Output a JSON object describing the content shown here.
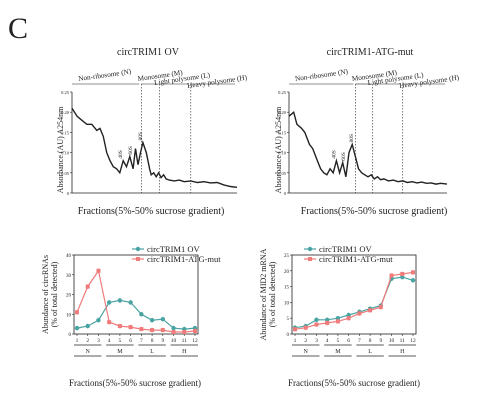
{
  "panel_label": "C",
  "colors": {
    "teal": "#4aa3a3",
    "pink": "#f07b7b",
    "ink": "#222222"
  },
  "chart_data": [
    {
      "type": "line",
      "title": "circTRIM1  OV",
      "ylabel": "Absorbance (AU) A254nm",
      "xlabel": "Fractions(5%-50% sucrose gradient)",
      "ylim": [
        0,
        0.25
      ],
      "yticks": [
        "0",
        "0.05",
        "0.10",
        "0.15",
        "0.20",
        "0.25"
      ],
      "regions": [
        "Non-ribosome (N)",
        "Monosome (M)",
        "Light polysome (L)",
        "Heavy polysome (H)"
      ],
      "peaks": [
        "40S",
        "60S",
        "80S"
      ],
      "x": [
        0,
        0.03,
        0.06,
        0.09,
        0.12,
        0.15,
        0.17,
        0.19,
        0.21,
        0.23,
        0.25,
        0.27,
        0.29,
        0.31,
        0.33,
        0.35,
        0.37,
        0.385,
        0.4,
        0.415,
        0.43,
        0.45,
        0.47,
        0.48,
        0.495,
        0.51,
        0.525,
        0.54,
        0.555,
        0.57,
        0.59,
        0.62,
        0.65,
        0.68,
        0.72,
        0.76,
        0.8,
        0.84,
        0.88,
        0.92,
        0.96,
        1.0
      ],
      "values": [
        0.21,
        0.19,
        0.18,
        0.17,
        0.17,
        0.155,
        0.16,
        0.14,
        0.1,
        0.08,
        0.065,
        0.06,
        0.05,
        0.08,
        0.065,
        0.09,
        0.06,
        0.11,
        0.07,
        0.1,
        0.125,
        0.1,
        0.06,
        0.045,
        0.05,
        0.04,
        0.05,
        0.038,
        0.045,
        0.035,
        0.032,
        0.03,
        0.032,
        0.028,
        0.03,
        0.026,
        0.028,
        0.025,
        0.026,
        0.02,
        0.016,
        0.014
      ]
    },
    {
      "type": "line",
      "title": "circTRIM1-ATG-mut",
      "ylabel": "Absorbance (AU) A254nm",
      "xlabel": "Fractions(5%-50% sucrose gradient)",
      "ylim": [
        0,
        0.25
      ],
      "yticks": [
        "0",
        "0.05",
        "0.10",
        "0.15",
        "0.20",
        "0.25"
      ],
      "regions": [
        "Non-ribosome (N)",
        "Monosome (M)",
        "Light polysome (L)",
        "Heavy polysome (H)"
      ],
      "peaks": [
        "40S",
        "60S",
        "80S"
      ],
      "x": [
        0,
        0.03,
        0.05,
        0.08,
        0.1,
        0.13,
        0.15,
        0.18,
        0.2,
        0.22,
        0.24,
        0.26,
        0.28,
        0.3,
        0.32,
        0.34,
        0.36,
        0.38,
        0.4,
        0.42,
        0.44,
        0.46,
        0.48,
        0.5,
        0.52,
        0.54,
        0.56,
        0.58,
        0.6,
        0.63,
        0.66,
        0.69,
        0.72,
        0.75,
        0.78,
        0.81,
        0.84,
        0.87,
        0.9,
        0.93,
        0.96,
        1.0
      ],
      "values": [
        0.19,
        0.2,
        0.17,
        0.16,
        0.15,
        0.12,
        0.11,
        0.08,
        0.06,
        0.05,
        0.045,
        0.06,
        0.05,
        0.08,
        0.05,
        0.075,
        0.04,
        0.1,
        0.12,
        0.09,
        0.06,
        0.05,
        0.045,
        0.04,
        0.045,
        0.035,
        0.04,
        0.033,
        0.035,
        0.03,
        0.032,
        0.028,
        0.03,
        0.026,
        0.028,
        0.025,
        0.027,
        0.024,
        0.025,
        0.022,
        0.024,
        0.022
      ]
    },
    {
      "type": "line",
      "ylabel": "Abundance of circRNAs\n(% of total detected)",
      "xlabel": "Fractions(5%-50% sucrose gradient)",
      "categories": [
        "1",
        "2",
        "3",
        "4",
        "5",
        "6",
        "7",
        "8",
        "9",
        "10",
        "11",
        "12"
      ],
      "ylim": [
        0,
        40
      ],
      "yticks": [
        "0",
        "10",
        "20",
        "30",
        "40"
      ],
      "groups": [
        {
          "label": "N",
          "from": 1,
          "to": 3
        },
        {
          "label": "M",
          "from": 4,
          "to": 6
        },
        {
          "label": "L",
          "from": 7,
          "to": 9
        },
        {
          "label": "H",
          "from": 10,
          "to": 12
        }
      ],
      "legend_position": "top-right",
      "series": [
        {
          "name": "circTRIM1  OV",
          "values": [
            3,
            4,
            7,
            16,
            17,
            16,
            10,
            7,
            7.5,
            3,
            2.5,
            3
          ]
        },
        {
          "name": "circTRIM1-ATG-mut",
          "values": [
            11,
            24,
            32,
            6,
            4,
            3.5,
            2.5,
            2,
            2,
            1,
            1,
            1.5
          ]
        }
      ]
    },
    {
      "type": "line",
      "ylabel": "Abundance of MID2 mRNA\n(% of total detected)",
      "xlabel": "Fractions(5%-50% sucrose gradient)",
      "categories": [
        "1",
        "2",
        "3",
        "4",
        "5",
        "6",
        "7",
        "8",
        "9",
        "10",
        "11",
        "12"
      ],
      "ylim": [
        0,
        25
      ],
      "yticks": [
        "0",
        "5",
        "10",
        "15",
        "20",
        "25"
      ],
      "groups": [
        {
          "label": "N",
          "from": 1,
          "to": 3
        },
        {
          "label": "M",
          "from": 4,
          "to": 6
        },
        {
          "label": "L",
          "from": 7,
          "to": 9
        },
        {
          "label": "H",
          "from": 10,
          "to": 12
        }
      ],
      "legend_position": "top-left",
      "series": [
        {
          "name": "circTRIM1  OV",
          "values": [
            2,
            2.5,
            4.5,
            4.5,
            5,
            6,
            7,
            8,
            9,
            17.5,
            18,
            17
          ]
        },
        {
          "name": "circTRIM1-ATG-mut",
          "values": [
            1.5,
            2,
            3,
            3.5,
            4,
            5,
            6.5,
            7.5,
            8.5,
            18.5,
            19,
            19.5
          ]
        }
      ]
    }
  ]
}
